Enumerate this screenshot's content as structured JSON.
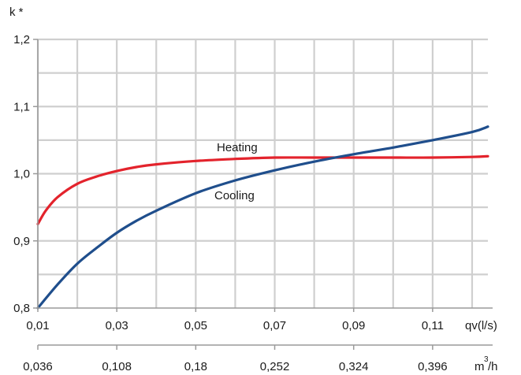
{
  "chart_data": {
    "type": "line",
    "ylabel": "k *",
    "xlabel": "qv(l/s)",
    "xlabel2": "m",
    "xlabel2_sup": "3",
    "xlabel2_tail": "/h",
    "xlim": [
      0.01,
      0.124
    ],
    "ylim": [
      0.8,
      1.2
    ],
    "y_ticks": [
      "0,8",
      "0,9",
      "1,0",
      "1,1",
      "1,2"
    ],
    "x_ticks": [
      "0,01",
      "0,03",
      "0,05",
      "0,07",
      "0,09",
      "0,11"
    ],
    "x_ticks_m3h": [
      "0,036",
      "0,108",
      "0,18",
      "0,252",
      "0,324",
      "0,396"
    ],
    "grid": true,
    "series": [
      {
        "name": "Heating",
        "color": "#e3232c",
        "x": [
          0.01,
          0.012,
          0.015,
          0.02,
          0.025,
          0.03,
          0.035,
          0.04,
          0.05,
          0.06,
          0.07,
          0.08,
          0.09,
          0.1,
          0.11,
          0.12,
          0.124
        ],
        "y": [
          0.925,
          0.945,
          0.965,
          0.985,
          0.996,
          1.004,
          1.01,
          1.014,
          1.019,
          1.022,
          1.024,
          1.024,
          1.024,
          1.024,
          1.024,
          1.025,
          1.026
        ]
      },
      {
        "name": "Cooling",
        "color": "#1f4e8c",
        "x": [
          0.01,
          0.015,
          0.02,
          0.025,
          0.03,
          0.035,
          0.04,
          0.05,
          0.06,
          0.07,
          0.08,
          0.09,
          0.1,
          0.11,
          0.12,
          0.124
        ],
        "y": [
          0.8,
          0.835,
          0.866,
          0.89,
          0.912,
          0.93,
          0.945,
          0.971,
          0.99,
          1.005,
          1.018,
          1.029,
          1.039,
          1.05,
          1.062,
          1.07
        ]
      }
    ]
  }
}
